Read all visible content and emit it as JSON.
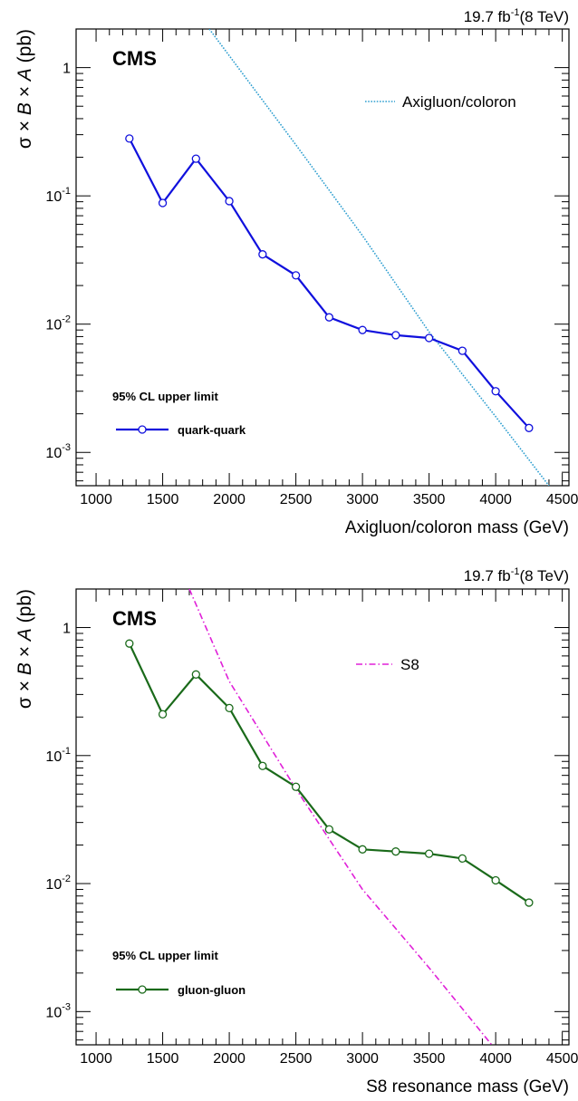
{
  "chart_data": [
    {
      "type": "line",
      "experiment": "CMS",
      "luminosity": "19.7 fb",
      "lumi_sup": "-1",
      "energy": "(8 TeV)",
      "xlabel": "Axigluon/coloron mass (GeV)",
      "ylabel_parts": [
        "σ × ",
        "B",
        " × ",
        "A",
        " (pb)"
      ],
      "xlim": [
        850,
        4550
      ],
      "ylim": [
        0.00055,
        2.0
      ],
      "yscale": "log",
      "xticks": [
        1000,
        1500,
        2000,
        2500,
        3000,
        3500,
        4000,
        4500
      ],
      "xtick_labels": [
        "1000",
        "1500",
        "2000",
        "2500",
        "3000",
        "3500",
        "4000",
        "4500"
      ],
      "yticks": [
        0.001,
        0.01,
        0.1,
        1
      ],
      "ytick_bases": [
        "10",
        "10",
        "10",
        "1"
      ],
      "ytick_exps": [
        "-3",
        "-2",
        "-1",
        ""
      ],
      "legend_header": "95% CL upper limit",
      "series": [
        {
          "name": "quark-quark",
          "style": "solid-circles",
          "color": "#1010dd",
          "x": [
            1250,
            1500,
            1750,
            2000,
            2250,
            2500,
            2750,
            3000,
            3250,
            3500,
            3750,
            4000,
            4250
          ],
          "y": [
            0.28,
            0.088,
            0.195,
            0.091,
            0.035,
            0.024,
            0.0113,
            0.009,
            0.0082,
            0.0078,
            0.0062,
            0.003,
            0.00155
          ]
        },
        {
          "name": "Axigluon/coloron",
          "style": "dotted",
          "color": "#2f9fd0",
          "x": [
            1850,
            2500,
            3000,
            3500,
            4000,
            4400
          ],
          "y": [
            2.0,
            0.25,
            0.049,
            0.0087,
            0.0019,
            0.00055
          ]
        }
      ]
    },
    {
      "type": "line",
      "experiment": "CMS",
      "luminosity": "19.7 fb",
      "lumi_sup": "-1",
      "energy": "(8 TeV)",
      "xlabel": "S8 resonance mass (GeV)",
      "ylabel_parts": [
        "σ × ",
        "B",
        " × ",
        "A",
        " (pb)"
      ],
      "xlim": [
        850,
        4550
      ],
      "ylim": [
        0.00055,
        2.0
      ],
      "yscale": "log",
      "xticks": [
        1000,
        1500,
        2000,
        2500,
        3000,
        3500,
        4000,
        4500
      ],
      "xtick_labels": [
        "1000",
        "1500",
        "2000",
        "2500",
        "3000",
        "3500",
        "4000",
        "4500"
      ],
      "yticks": [
        0.001,
        0.01,
        0.1,
        1
      ],
      "ytick_bases": [
        "10",
        "10",
        "10",
        "1"
      ],
      "ytick_exps": [
        "-3",
        "-2",
        "-1",
        ""
      ],
      "legend_header": "95% CL upper limit",
      "series": [
        {
          "name": "gluon-gluon",
          "style": "solid-circles",
          "color": "#1a6a1a",
          "x": [
            1250,
            1500,
            1750,
            2000,
            2250,
            2500,
            2750,
            3000,
            3250,
            3500,
            3750,
            4000,
            4250
          ],
          "y": [
            0.75,
            0.21,
            0.43,
            0.235,
            0.083,
            0.057,
            0.0265,
            0.0185,
            0.0178,
            0.0171,
            0.0157,
            0.0106,
            0.0071
          ]
        },
        {
          "name": "S8",
          "style": "dash-dot",
          "color": "#e020d8",
          "x": [
            1700,
            2000,
            2500,
            3000,
            3500,
            3970
          ],
          "y": [
            2.0,
            0.38,
            0.055,
            0.009,
            0.0022,
            0.00055
          ]
        }
      ]
    }
  ]
}
